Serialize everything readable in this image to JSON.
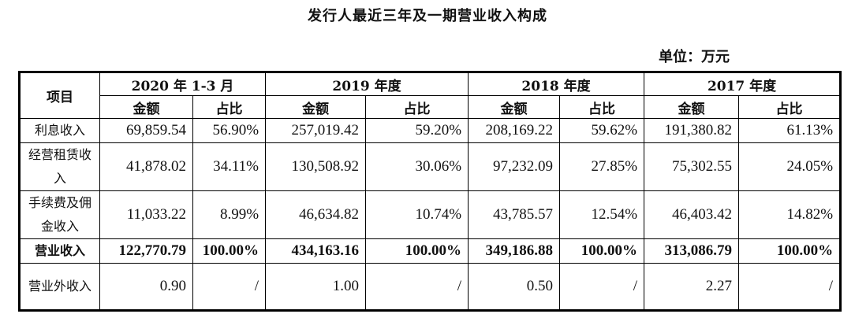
{
  "title": "发行人最近三年及一期营业收入构成",
  "unit": "单位：万元",
  "table": {
    "item_header": "项目",
    "periods": [
      "2020 年 1-3 月",
      "2019 年度",
      "2018 年度",
      "2017 年度"
    ],
    "sub_headers": [
      "金额",
      "占比"
    ],
    "rows": [
      {
        "item": "利息收入",
        "values": [
          "69,859.54",
          "56.90%",
          "257,019.42",
          "59.20%",
          "208,169.22",
          "59.62%",
          "191,380.82",
          "61.13%"
        ]
      },
      {
        "item": "经营租赁收入",
        "values": [
          "41,878.02",
          "34.11%",
          "130,508.92",
          "30.06%",
          "97,232.09",
          "27.85%",
          "75,302.55",
          "24.05%"
        ]
      },
      {
        "item": "手续费及佣金收入",
        "values": [
          "11,033.22",
          "8.99%",
          "46,634.82",
          "10.74%",
          "43,785.57",
          "12.54%",
          "46,403.42",
          "14.82%"
        ]
      },
      {
        "item": "营业收入",
        "values": [
          "122,770.79",
          "100.00%",
          "434,163.16",
          "100.00%",
          "349,186.88",
          "100.00%",
          "313,086.79",
          "100.00%"
        ],
        "bold": true
      },
      {
        "item": "营业外收入",
        "values": [
          "0.90",
          "/",
          "1.00",
          "/",
          "0.50",
          "/",
          "2.27",
          "/"
        ]
      }
    ]
  }
}
